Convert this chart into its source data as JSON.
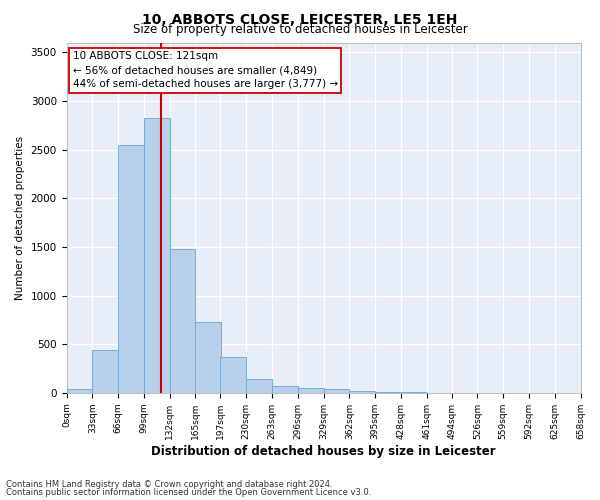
{
  "title1": "10, ABBOTS CLOSE, LEICESTER, LE5 1EH",
  "title2": "Size of property relative to detached houses in Leicester",
  "xlabel": "Distribution of detached houses by size in Leicester",
  "ylabel": "Number of detached properties",
  "footnote1": "Contains HM Land Registry data © Crown copyright and database right 2024.",
  "footnote2": "Contains public sector information licensed under the Open Government Licence v3.0.",
  "annotation_line1": "10 ABBOTS CLOSE: 121sqm",
  "annotation_line2": "← 56% of detached houses are smaller (4,849)",
  "annotation_line3": "44% of semi-detached houses are larger (3,777) →",
  "property_size": 121,
  "bin_width": 33,
  "bin_starts": [
    0,
    33,
    66,
    99,
    132,
    165,
    197,
    230,
    263,
    296,
    329,
    362,
    395,
    428,
    461,
    494,
    526,
    559,
    592,
    625
  ],
  "bar_values": [
    40,
    440,
    2550,
    2820,
    1480,
    730,
    370,
    145,
    75,
    45,
    35,
    18,
    8,
    5,
    2,
    1,
    1,
    0,
    0,
    0
  ],
  "bar_color": "#b8d0ea",
  "bar_edge_color": "#7aadd4",
  "vline_color": "#cc0000",
  "background_color": "#e8eef8",
  "ylim": [
    0,
    3600
  ],
  "yticks": [
    0,
    500,
    1000,
    1500,
    2000,
    2500,
    3000,
    3500
  ],
  "tick_labels": [
    "0sqm",
    "33sqm",
    "66sqm",
    "99sqm",
    "132sqm",
    "165sqm",
    "197sqm",
    "230sqm",
    "263sqm",
    "296sqm",
    "329sqm",
    "362sqm",
    "395sqm",
    "428sqm",
    "461sqm",
    "494sqm",
    "526sqm",
    "559sqm",
    "592sqm",
    "625sqm",
    "658sqm"
  ],
  "title1_fontsize": 10,
  "title2_fontsize": 8.5,
  "ylabel_fontsize": 7.5,
  "xlabel_fontsize": 8.5,
  "annotation_fontsize": 7.5,
  "footnote_fontsize": 6,
  "ytick_fontsize": 7.5,
  "xtick_fontsize": 6.5
}
